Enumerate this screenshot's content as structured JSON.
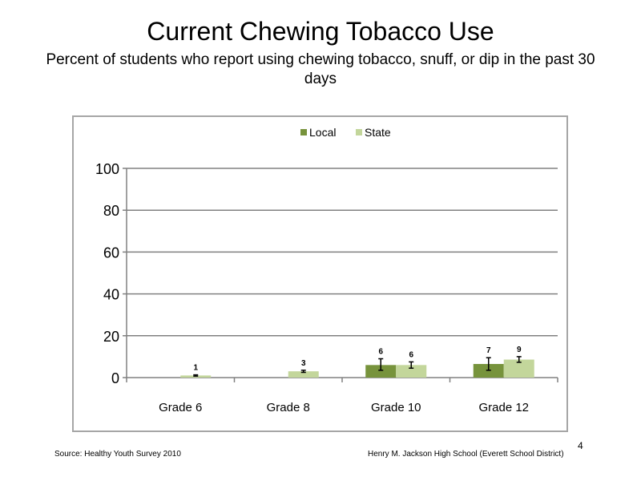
{
  "title": "Current Chewing Tobacco Use",
  "subtitle": "Percent of students who report using chewing tobacco, snuff, or dip in the past 30 days",
  "footer": {
    "source": "Source: Healthy Youth Survey 2010",
    "school": "Henry M. Jackson High School (Everett School District)",
    "page_number": "4"
  },
  "colors": {
    "local": "#77933c",
    "state": "#c3d69b",
    "grid": "#808080"
  },
  "chart_data": {
    "type": "bar",
    "categories": [
      "Grade 6",
      "Grade 8",
      "Grade 10",
      "Grade 12"
    ],
    "ylim": [
      0,
      100
    ],
    "yticks": [
      0,
      20,
      40,
      60,
      80,
      100
    ],
    "grid": true,
    "legend": "top-center",
    "series": [
      {
        "name": "Local",
        "values": [
          null,
          null,
          6,
          6.5
        ],
        "labels": [
          "",
          "",
          "6",
          "7"
        ],
        "error": [
          [
            null,
            null
          ],
          [
            null,
            null
          ],
          [
            3.5,
            9
          ],
          [
            3.5,
            9.5
          ]
        ]
      },
      {
        "name": "State",
        "values": [
          1,
          3,
          6,
          8.6
        ],
        "labels": [
          "1",
          "3",
          "6",
          "9"
        ],
        "error": [
          [
            0.7,
            1.3
          ],
          [
            2.5,
            3.5
          ],
          [
            4.5,
            7.5
          ],
          [
            7.3,
            10
          ]
        ]
      }
    ]
  }
}
